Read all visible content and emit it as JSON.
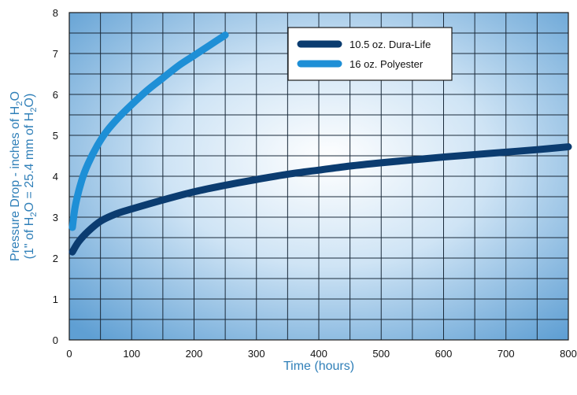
{
  "chart_data": {
    "type": "line",
    "title": "",
    "xlabel": "Time (hours)",
    "ylabel": "Pressure Drop - inches of H2O",
    "ylabel_sub": "(1\" of H2O = 25.4 mm of H2O)",
    "xlim": [
      0,
      800
    ],
    "ylim": [
      0,
      8
    ],
    "x_ticks": [
      0,
      100,
      200,
      300,
      400,
      500,
      600,
      700,
      800
    ],
    "y_ticks": [
      0,
      1,
      2,
      3,
      4,
      5,
      6,
      7,
      8
    ],
    "grid": true,
    "legend_position": "top-right",
    "series": [
      {
        "name": "10.5 oz. Dura-Life",
        "color": "#0b3c70",
        "x": [
          5,
          15,
          30,
          50,
          75,
          100,
          150,
          200,
          250,
          300,
          350,
          400,
          450,
          500,
          550,
          600,
          650,
          700,
          750,
          800
        ],
        "y": [
          2.15,
          2.4,
          2.65,
          2.9,
          3.08,
          3.2,
          3.42,
          3.62,
          3.78,
          3.92,
          4.05,
          4.15,
          4.25,
          4.33,
          4.4,
          4.47,
          4.53,
          4.59,
          4.65,
          4.72
        ]
      },
      {
        "name": "16 oz. Polyester",
        "color": "#1e8fd6",
        "x": [
          5,
          10,
          20,
          30,
          45,
          60,
          80,
          100,
          125,
          150,
          175,
          200,
          225,
          250
        ],
        "y": [
          2.75,
          3.3,
          3.9,
          4.3,
          4.75,
          5.1,
          5.45,
          5.75,
          6.1,
          6.4,
          6.7,
          6.95,
          7.2,
          7.45
        ]
      }
    ]
  }
}
